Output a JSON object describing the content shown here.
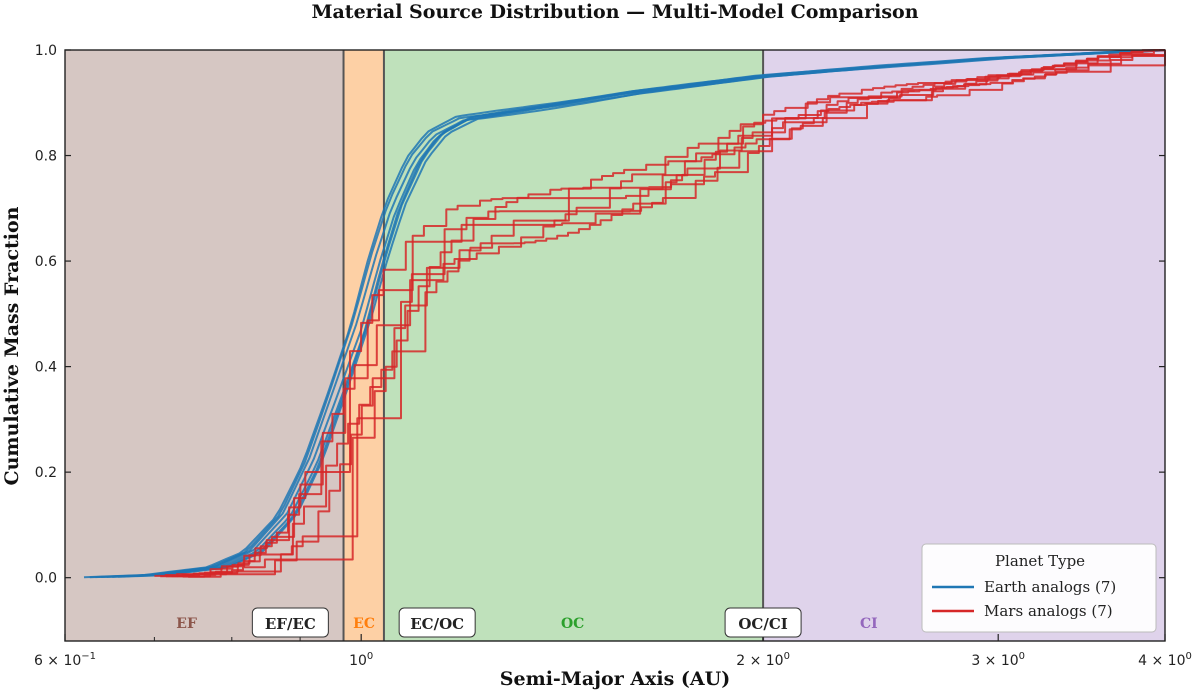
{
  "chart_data": {
    "type": "line",
    "title": "Material Source Distribution — Multi-Model Comparison",
    "xlabel": "Semi-Major Axis (AU)",
    "ylabel": "Cumulative Mass Fraction",
    "xscale": "log",
    "xlim": [
      0.6,
      4.0
    ],
    "ylim": [
      -0.12,
      1.0
    ],
    "yticks": [
      {
        "value": 0.0,
        "label": "0.0"
      },
      {
        "value": 0.2,
        "label": "0.2"
      },
      {
        "value": 0.4,
        "label": "0.4"
      },
      {
        "value": 0.6,
        "label": "0.6"
      },
      {
        "value": 0.8,
        "label": "0.8"
      },
      {
        "value": 1.0,
        "label": "1.0"
      }
    ],
    "xticks": [
      {
        "value": 0.6,
        "base": "6 × 10",
        "exp": "−1"
      },
      {
        "value": 1.0,
        "base": "10",
        "exp": "0"
      },
      {
        "value": 2.0,
        "base": "2 × 10",
        "exp": "0"
      },
      {
        "value": 3.0,
        "base": "3 × 10",
        "exp": "0"
      },
      {
        "value": 4.0,
        "base": "4 × 10",
        "exp": "0"
      }
    ],
    "regions": [
      {
        "label": "EF",
        "from": 0.6,
        "to": 0.97,
        "color": "#d6c7c3",
        "text_color": "#8c564b"
      },
      {
        "label": "EC",
        "from": 0.97,
        "to": 1.04,
        "color": "#fdd0a5",
        "text_color": "#ff7f0e"
      },
      {
        "label": "OC",
        "from": 1.04,
        "to": 2.0,
        "color": "#bfe1bb",
        "text_color": "#2ca02c"
      },
      {
        "label": "CI",
        "from": 2.0,
        "to": 4.0,
        "color": "#dfd3eb",
        "text_color": "#9467bd"
      }
    ],
    "boundaries": [
      {
        "label": "EF/EC",
        "x": 0.97
      },
      {
        "label": "EC/OC",
        "x": 1.04
      },
      {
        "label": "OC/CI",
        "x": 2.0
      }
    ],
    "legend": {
      "title": "Planet Type",
      "position": "lower right",
      "entries": [
        "Earth analogs (7)",
        "Mars analogs (7)"
      ]
    },
    "series": [
      {
        "name": "Earth analogs (7)",
        "color": "#1f77b4",
        "count": 7,
        "x": [
          0.62,
          0.7,
          0.78,
          0.83,
          0.88,
          0.92,
          0.96,
          1.0,
          1.03,
          1.06,
          1.1,
          1.14,
          1.2,
          1.35,
          1.6,
          2.0,
          2.5,
          3.0,
          3.6,
          4.0
        ],
        "y": [
          0.0,
          0.005,
          0.02,
          0.05,
          0.12,
          0.22,
          0.35,
          0.48,
          0.6,
          0.7,
          0.79,
          0.84,
          0.87,
          0.89,
          0.92,
          0.95,
          0.97,
          0.985,
          0.995,
          1.0
        ]
      },
      {
        "name": "Mars analogs (7)",
        "color": "#d62728",
        "count": 7,
        "x": [
          0.7,
          0.78,
          0.83,
          0.88,
          0.92,
          0.96,
          1.0,
          1.04,
          1.08,
          1.12,
          1.2,
          1.35,
          1.55,
          1.8,
          2.0,
          2.3,
          2.7,
          3.2,
          3.7,
          4.0
        ],
        "y": [
          0.0,
          0.01,
          0.03,
          0.08,
          0.16,
          0.27,
          0.37,
          0.46,
          0.55,
          0.6,
          0.65,
          0.69,
          0.73,
          0.79,
          0.85,
          0.9,
          0.93,
          0.96,
          0.99,
          1.0
        ]
      }
    ]
  }
}
